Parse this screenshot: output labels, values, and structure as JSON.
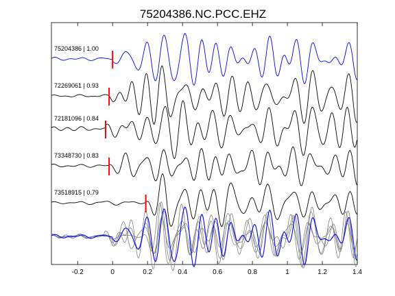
{
  "chart_data": {
    "type": "line",
    "title": "75204386.NC.PCC.EHZ",
    "xlabel": "",
    "ylabel": "",
    "xlim": [
      -0.35,
      1.4
    ],
    "xticks": [
      -0.2,
      0,
      0.2,
      0.4,
      0.6,
      0.8,
      1,
      1.2,
      1.4
    ],
    "xtick_labels": [
      "-0.2",
      "0",
      "0.2",
      "0.4",
      "0.6",
      "0.8",
      "1",
      "1.2",
      "1.4"
    ],
    "grid": false,
    "colors": {
      "reference": "#0000ff",
      "trace": "#000000",
      "overlay": "#808080",
      "pick": "#ff0000"
    },
    "traces": [
      {
        "label": "75204386 | 1.00",
        "event_id": "75204386",
        "correlation": 1.0,
        "pick_time": 0.0,
        "color": "#0000ff",
        "seed": 11,
        "noise_until": 0.0
      },
      {
        "label": "72269061 | 0.93",
        "event_id": "72269061",
        "correlation": 0.93,
        "pick_time": -0.02,
        "color": "#000000",
        "seed": 23,
        "noise_until": -0.02
      },
      {
        "label": "72181096 | 0.84",
        "event_id": "72181096",
        "correlation": 0.84,
        "pick_time": -0.04,
        "color": "#000000",
        "seed": 37,
        "noise_until": -0.04
      },
      {
        "label": "73348730 | 0.83",
        "event_id": "73348730",
        "correlation": 0.83,
        "pick_time": -0.02,
        "color": "#000000",
        "seed": 41,
        "noise_until": -0.02
      },
      {
        "label": "73518915 | 0.79",
        "event_id": "73518915",
        "correlation": 0.79,
        "pick_time": 0.19,
        "color": "#000000",
        "seed": 53,
        "noise_until": 0.19
      }
    ]
  }
}
